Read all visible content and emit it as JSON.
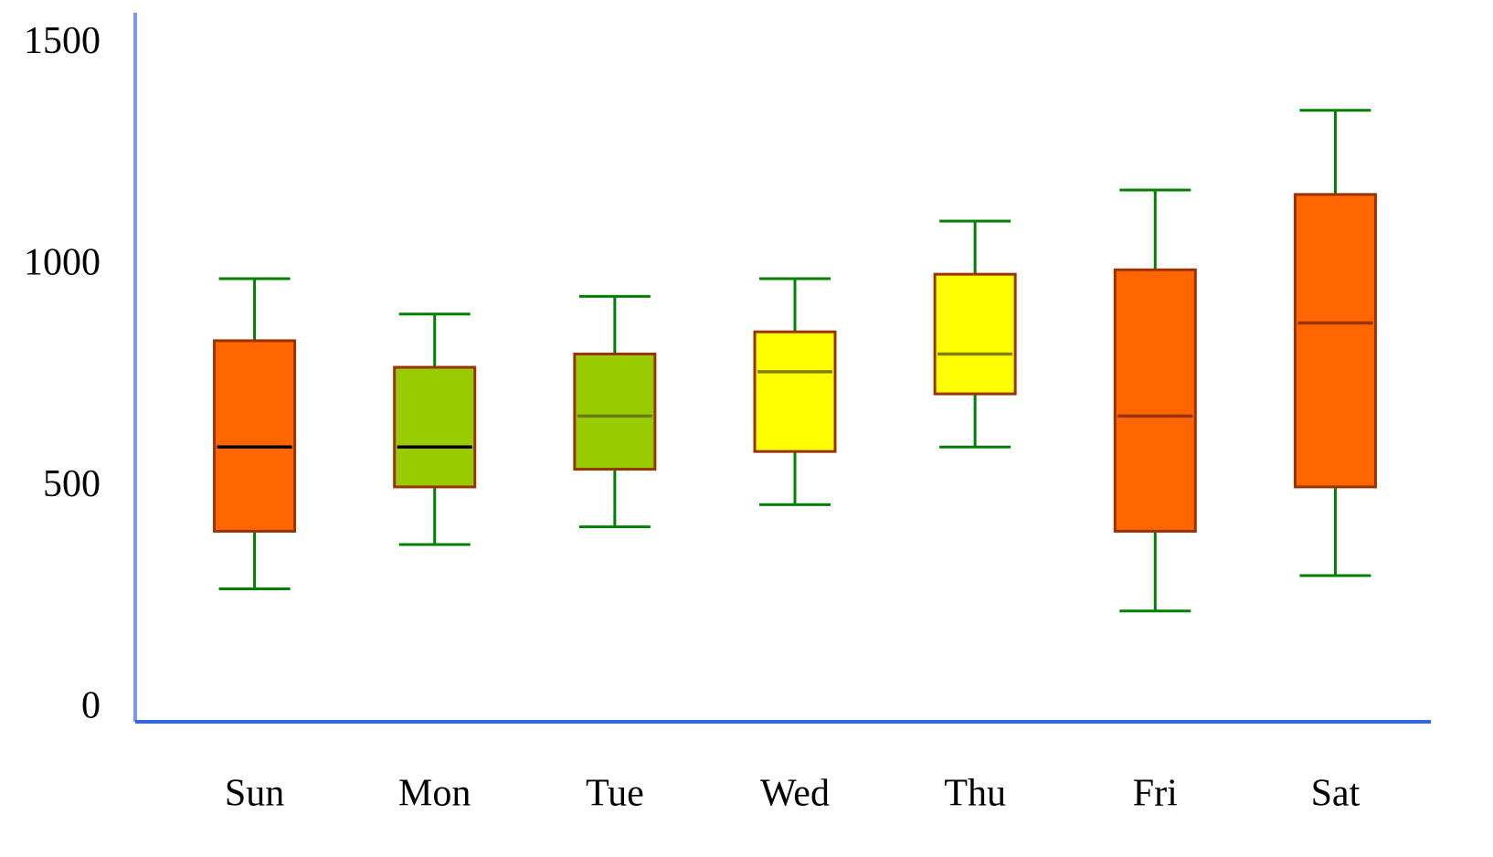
{
  "chart_data": {
    "type": "box",
    "categories": [
      "Sun",
      "Mon",
      "Tue",
      "Wed",
      "Thu",
      "Fri",
      "Sat"
    ],
    "series": [
      {
        "low": [
          300,
          400,
          440,
          490,
          620,
          250,
          330
        ],
        "q1": [
          430,
          530,
          570,
          610,
          740,
          430,
          530
        ],
        "median": [
          620,
          620,
          690,
          790,
          830,
          690,
          900
        ],
        "q3": [
          860,
          800,
          830,
          880,
          1010,
          1020,
          1190
        ],
        "high": [
          1000,
          920,
          960,
          1000,
          1130,
          1200,
          1380
        ],
        "colors": [
          "#ff6600",
          "#99cc00",
          "#99cc00",
          "#ffff00",
          "#ffff00",
          "#ff6600",
          "#ff6600"
        ],
        "median_colors": [
          "#000000",
          "#000000",
          "#6b7a00",
          "#808000",
          "#808000",
          "#993300",
          "#993300"
        ]
      }
    ],
    "box_edge_color": "#993300",
    "whisker_color": "#008000",
    "ylim": [
      0,
      1600
    ],
    "yticks": [
      0,
      500,
      1000,
      1500
    ],
    "grid": false
  }
}
